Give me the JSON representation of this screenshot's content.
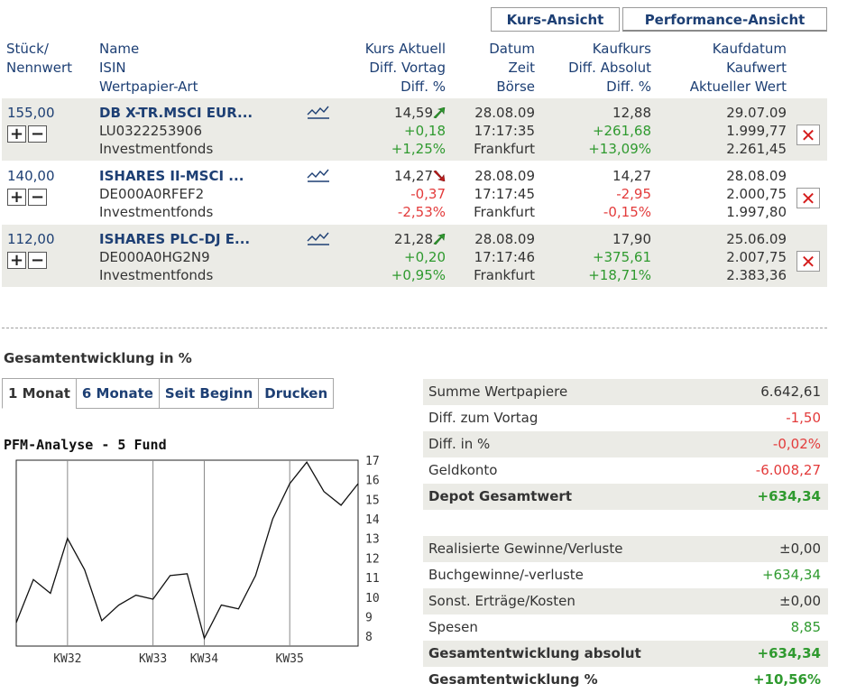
{
  "view_tabs": {
    "kurs": "Kurs-Ansicht",
    "performance": "Performance-Ansicht"
  },
  "header": {
    "col1": [
      "Stück/",
      "Nennwert"
    ],
    "col2": [
      "Name",
      "ISIN",
      "Wertpapier-Art"
    ],
    "col3": [
      "Kurs Aktuell",
      "Diff. Vortag",
      "Diff. %"
    ],
    "col4": [
      "Datum",
      "Zeit",
      "Börse"
    ],
    "col5": [
      "Kaufkurs",
      "Diff. Absolut",
      "Diff. %"
    ],
    "col6": [
      "Kaufdatum",
      "Kaufwert",
      "Aktueller Wert"
    ]
  },
  "positions": [
    {
      "qty": "155,00",
      "name": "DB X-TR.MSCI EUR...",
      "isin": "LU0322253906",
      "type": "Investmentfonds",
      "price": "14,59",
      "diff_prev": "+0,18",
      "diff_prev_pct": "+1,25%",
      "trend": "up",
      "date": "28.08.09",
      "time": "17:17:35",
      "exchange": "Frankfurt",
      "buy_price": "12,88",
      "diff_abs": "+261,68",
      "diff_pct": "+13,09%",
      "buy_date": "29.07.09",
      "buy_value": "1.999,77",
      "current_value": "2.261,45"
    },
    {
      "qty": "140,00",
      "name": "ISHARES II-MSCI ...",
      "isin": "DE000A0RFEF2",
      "type": "Investmentfonds",
      "price": "14,27",
      "diff_prev": "-0,37",
      "diff_prev_pct": "-2,53%",
      "trend": "down",
      "date": "28.08.09",
      "time": "17:17:45",
      "exchange": "Frankfurt",
      "buy_price": "14,27",
      "diff_abs": "-2,95",
      "diff_pct": "-0,15%",
      "buy_date": "28.08.09",
      "buy_value": "2.000,75",
      "current_value": "1.997,80"
    },
    {
      "qty": "112,00",
      "name": "ISHARES PLC-DJ E...",
      "isin": "DE000A0HG2N9",
      "type": "Investmentfonds",
      "price": "21,28",
      "diff_prev": "+0,20",
      "diff_prev_pct": "+0,95%",
      "trend": "up",
      "date": "28.08.09",
      "time": "17:17:46",
      "exchange": "Frankfurt",
      "buy_price": "17,90",
      "diff_abs": "+375,61",
      "diff_pct": "+18,71%",
      "buy_date": "25.06.09",
      "buy_value": "2.007,75",
      "current_value": "2.383,36"
    }
  ],
  "section_title": "Gesamtentwicklung in %",
  "period_tabs": [
    "1 Monat",
    "6 Monate",
    "Seit Beginn",
    "Drucken"
  ],
  "summary1": [
    {
      "label": "Summe Wertpapiere",
      "value": "6.642,61",
      "tone": "neutral",
      "bold": false
    },
    {
      "label": "Diff. zum Vortag",
      "value": "-1,50",
      "tone": "red",
      "bold": false
    },
    {
      "label": "Diff. in %",
      "value": "-0,02%",
      "tone": "red",
      "bold": false
    },
    {
      "label": "Geldkonto",
      "value": "-6.008,27",
      "tone": "red",
      "bold": false
    },
    {
      "label": "Depot Gesamtwert",
      "value": "+634,34",
      "tone": "green",
      "bold": true
    }
  ],
  "summary2": [
    {
      "label": "Realisierte Gewinne/Verluste",
      "value": "±0,00",
      "tone": "neutral",
      "bold": false
    },
    {
      "label": "Buchgewinne/-verluste",
      "value": "+634,34",
      "tone": "green",
      "bold": false
    },
    {
      "label": "Sonst. Erträge/Kosten",
      "value": "±0,00",
      "tone": "neutral",
      "bold": false
    },
    {
      "label": "Spesen",
      "value": "8,85",
      "tone": "green",
      "bold": false
    },
    {
      "label": "Gesamtentwicklung absolut",
      "value": "+634,34",
      "tone": "green",
      "bold": true
    },
    {
      "label": "Gesamtentwicklung %",
      "value": "+10,56%",
      "tone": "green",
      "bold": true
    }
  ],
  "colors": {
    "link": "#1d3f74",
    "positive": "#2f9a2f",
    "negative": "#e33b3b",
    "row_shade": "#ebebe6"
  },
  "chart_data": {
    "type": "line",
    "title": "PFM-Analyse - 5 Fund",
    "xlabel": "",
    "ylabel": "",
    "ylim": [
      7,
      17.5
    ],
    "yticks": [
      8,
      9,
      10,
      11,
      12,
      13,
      14,
      15,
      16,
      17
    ],
    "xticks": [
      {
        "label": "KW32",
        "x": 3
      },
      {
        "label": "KW33",
        "x": 8
      },
      {
        "label": "KW34",
        "x": 11
      },
      {
        "label": "KW35",
        "x": 16
      }
    ],
    "x": [
      0,
      1,
      2,
      3,
      4,
      5,
      6,
      7,
      8,
      9,
      10,
      11,
      12,
      13,
      14,
      15,
      16,
      17,
      18,
      19,
      20
    ],
    "values": [
      8.7,
      10.9,
      10.2,
      13.0,
      11.4,
      8.8,
      9.6,
      10.1,
      9.9,
      11.1,
      11.2,
      7.9,
      9.6,
      9.4,
      11.1,
      14.0,
      15.8,
      16.9,
      15.4,
      14.7,
      15.8
    ],
    "grid": true
  }
}
